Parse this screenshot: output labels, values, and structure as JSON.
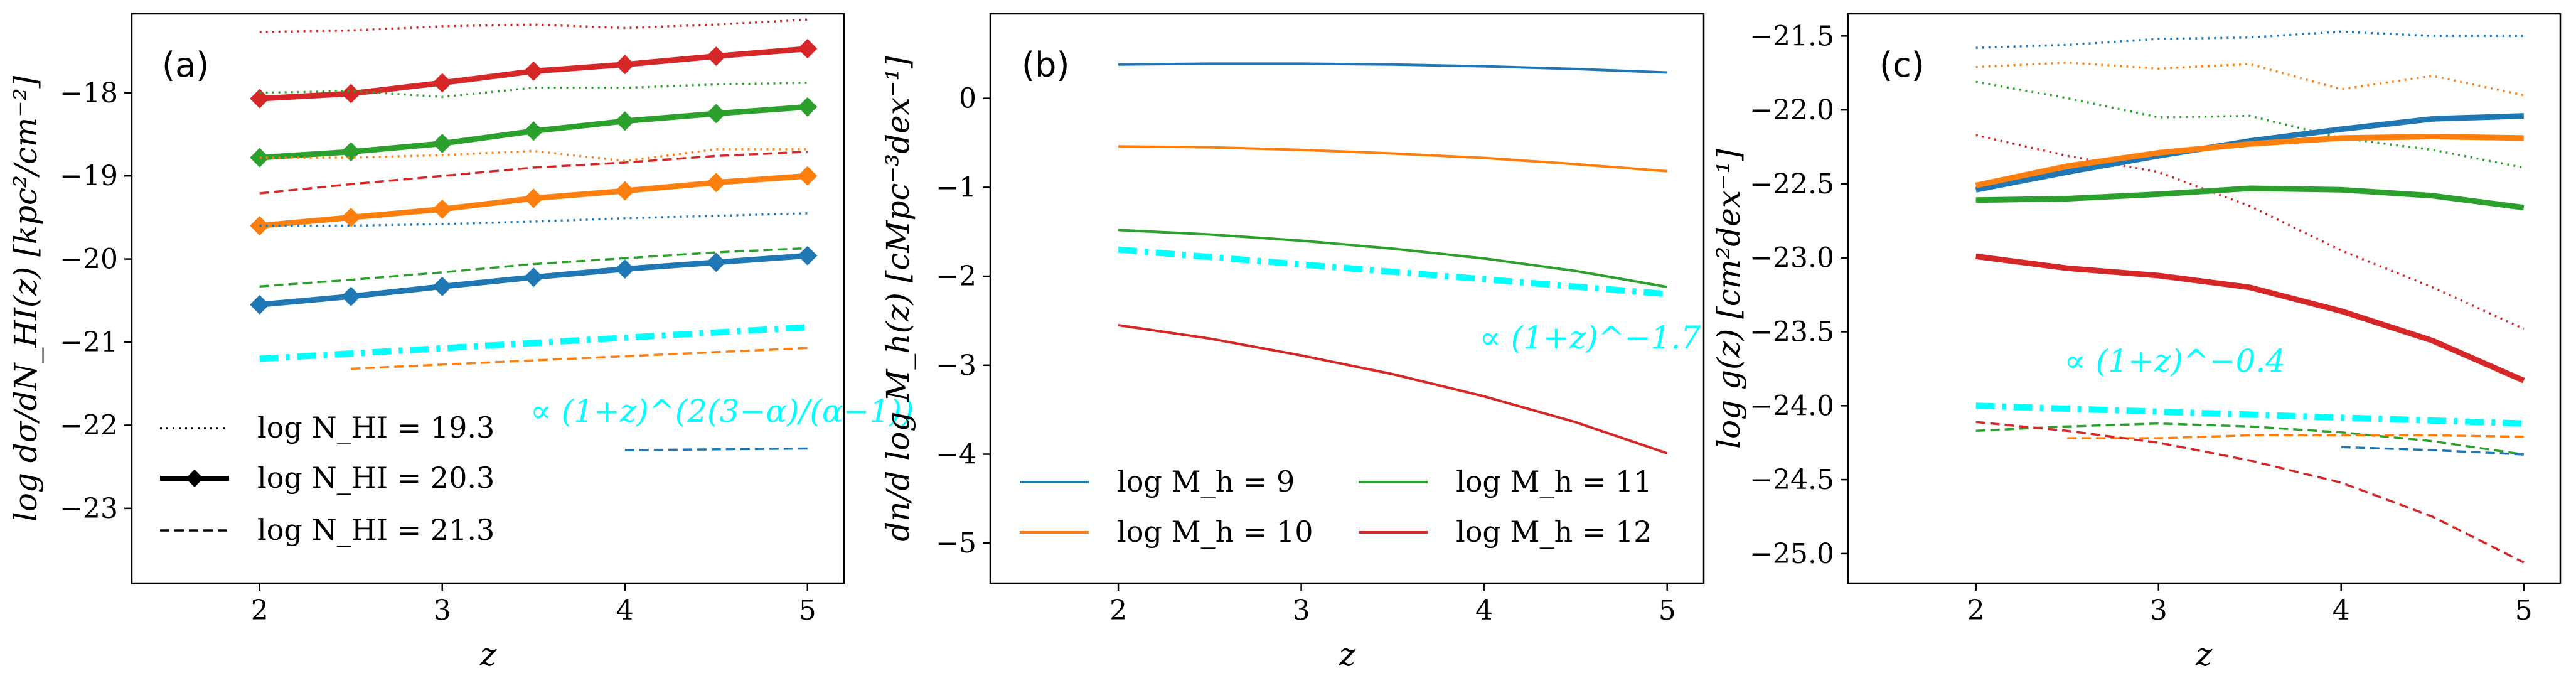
{
  "colors": {
    "blue": "#1f77b4",
    "orange": "#ff7f0e",
    "green": "#2ca02c",
    "red": "#d62728",
    "cyan": "#00ffff"
  },
  "chart_data": [
    {
      "type": "line",
      "panel_label": "(a)",
      "xlabel": "z",
      "ylabel": "log dσ/dN_HI(z) [kpc²/cm⁻²]",
      "xlim": [
        1.3,
        5.2
      ],
      "ylim": [
        -23.9,
        -17.05
      ],
      "xticks": [
        2,
        3,
        4,
        5
      ],
      "yticks": [
        -18,
        -19,
        -20,
        -21,
        -22,
        -23
      ],
      "legend": {
        "position": "lower-left",
        "entries": [
          {
            "label": "log N_HI = 19.3",
            "style": "dotted"
          },
          {
            "label": "log N_HI = 20.3",
            "style": "solid-diamond"
          },
          {
            "label": "log N_HI = 21.3",
            "style": "dashed"
          }
        ]
      },
      "annotation": "∝ (1+z)^(2(3−α)/(α−1))",
      "series": [
        {
          "name": "red log N_HI=19.3",
          "color": "red",
          "style": "dotted",
          "x": [
            2,
            2.5,
            3,
            3.5,
            4,
            4.5,
            5
          ],
          "y": [
            -17.27,
            -17.25,
            -17.2,
            -17.18,
            -17.22,
            -17.18,
            -17.12
          ]
        },
        {
          "name": "red log N_HI=20.3",
          "color": "red",
          "style": "solid",
          "marker": "D",
          "x": [
            2,
            2.5,
            3,
            3.5,
            4,
            4.5,
            5
          ],
          "y": [
            -18.07,
            -18.01,
            -17.88,
            -17.74,
            -17.66,
            -17.56,
            -17.47
          ]
        },
        {
          "name": "red log N_HI=21.3",
          "color": "red",
          "style": "dashed",
          "x": [
            2,
            2.5,
            3,
            3.5,
            4,
            4.5,
            5
          ],
          "y": [
            -19.21,
            -19.1,
            -19.0,
            -18.9,
            -18.84,
            -18.76,
            -18.71
          ]
        },
        {
          "name": "green log N_HI=19.3",
          "color": "green",
          "style": "dotted",
          "x": [
            2,
            2.5,
            3,
            3.5,
            4,
            4.5,
            5
          ],
          "y": [
            -18.0,
            -17.98,
            -18.05,
            -17.94,
            -17.94,
            -17.9,
            -17.88
          ]
        },
        {
          "name": "green log N_HI=20.3",
          "color": "green",
          "style": "solid",
          "marker": "D",
          "x": [
            2,
            2.5,
            3,
            3.5,
            4,
            4.5,
            5
          ],
          "y": [
            -18.78,
            -18.71,
            -18.61,
            -18.46,
            -18.34,
            -18.25,
            -18.17
          ]
        },
        {
          "name": "green log N_HI=21.3",
          "color": "green",
          "style": "dashed",
          "x": [
            2,
            2.5,
            3,
            3.5,
            4,
            4.5,
            5
          ],
          "y": [
            -20.33,
            -20.25,
            -20.16,
            -20.06,
            -19.99,
            -19.92,
            -19.87
          ]
        },
        {
          "name": "orange log N_HI=19.3",
          "color": "orange",
          "style": "dotted",
          "x": [
            2,
            2.5,
            3,
            3.5,
            4,
            4.5,
            5
          ],
          "y": [
            -18.78,
            -18.78,
            -18.75,
            -18.7,
            -18.82,
            -18.68,
            -18.68
          ]
        },
        {
          "name": "orange log N_HI=20.3",
          "color": "orange",
          "style": "solid",
          "marker": "D",
          "x": [
            2,
            2.5,
            3,
            3.5,
            4,
            4.5,
            5
          ],
          "y": [
            -19.6,
            -19.5,
            -19.4,
            -19.27,
            -19.18,
            -19.08,
            -19.0
          ]
        },
        {
          "name": "orange log N_HI=21.3",
          "color": "orange",
          "style": "dashed",
          "x": [
            2.5,
            3,
            3.5,
            4,
            4.5,
            5
          ],
          "y": [
            -21.32,
            -21.27,
            -21.22,
            -21.17,
            -21.12,
            -21.07
          ]
        },
        {
          "name": "blue log N_HI=19.3",
          "color": "blue",
          "style": "dotted",
          "x": [
            2,
            2.5,
            3,
            3.5,
            4,
            4.5,
            5
          ],
          "y": [
            -19.6,
            -19.6,
            -19.58,
            -19.55,
            -19.51,
            -19.48,
            -19.45
          ]
        },
        {
          "name": "blue log N_HI=20.3",
          "color": "blue",
          "style": "solid",
          "marker": "D",
          "x": [
            2,
            2.5,
            3,
            3.5,
            4,
            4.5,
            5
          ],
          "y": [
            -20.55,
            -20.45,
            -20.33,
            -20.22,
            -20.12,
            -20.04,
            -19.96
          ]
        },
        {
          "name": "blue log N_HI=21.3",
          "color": "blue",
          "style": "dashed",
          "x": [
            4,
            4.5,
            5
          ],
          "y": [
            -22.3,
            -22.29,
            -22.28
          ]
        },
        {
          "name": "power law",
          "color": "cyan",
          "style": "dashdot",
          "x": [
            2,
            5
          ],
          "y": [
            -21.2,
            -20.82
          ]
        }
      ]
    },
    {
      "type": "line",
      "panel_label": "(b)",
      "xlabel": "z",
      "ylabel": "dn/d log M_h(z) [cMpc⁻³dex⁻¹]",
      "xlim": [
        1.3,
        5.2
      ],
      "ylim": [
        -5.45,
        0.95
      ],
      "xticks": [
        2,
        3,
        4,
        5
      ],
      "yticks": [
        0,
        -1,
        -2,
        -3,
        -4,
        -5
      ],
      "legend": {
        "position": "lower-left",
        "entries": [
          {
            "label": "log M_h = 9",
            "color": "blue"
          },
          {
            "label": "log M_h = 10",
            "color": "orange"
          },
          {
            "label": "log M_h = 11",
            "color": "green"
          },
          {
            "label": "log M_h = 12",
            "color": "red"
          }
        ]
      },
      "annotation": "∝ (1+z)^−1.7",
      "series": [
        {
          "name": "log M_h = 9",
          "color": "blue",
          "style": "solid",
          "x": [
            2,
            2.5,
            3,
            3.5,
            4,
            4.5,
            5
          ],
          "y": [
            0.38,
            0.39,
            0.39,
            0.38,
            0.36,
            0.33,
            0.29
          ]
        },
        {
          "name": "log M_h = 10",
          "color": "orange",
          "style": "solid",
          "x": [
            2,
            2.5,
            3,
            3.5,
            4,
            4.5,
            5
          ],
          "y": [
            -0.54,
            -0.55,
            -0.58,
            -0.62,
            -0.67,
            -0.74,
            -0.82
          ]
        },
        {
          "name": "log M_h = 11",
          "color": "green",
          "style": "solid",
          "x": [
            2,
            2.5,
            3,
            3.5,
            4,
            4.5,
            5
          ],
          "y": [
            -1.48,
            -1.53,
            -1.6,
            -1.69,
            -1.8,
            -1.94,
            -2.12
          ]
        },
        {
          "name": "log M_h = 12",
          "color": "red",
          "style": "solid",
          "x": [
            2,
            2.5,
            3,
            3.5,
            4,
            4.5,
            5
          ],
          "y": [
            -2.55,
            -2.7,
            -2.89,
            -3.1,
            -3.35,
            -3.64,
            -3.99
          ]
        },
        {
          "name": "power law",
          "color": "cyan",
          "style": "dashdot",
          "x": [
            2,
            5
          ],
          "y": [
            -1.7,
            -2.2
          ]
        }
      ]
    },
    {
      "type": "line",
      "panel_label": "(c)",
      "xlabel": "z",
      "ylabel": "log g(z) [cm²dex⁻¹]",
      "xlim": [
        1.3,
        5.2
      ],
      "ylim": [
        -25.2,
        -21.35
      ],
      "xticks": [
        2,
        3,
        4,
        5
      ],
      "yticks": [
        -21.5,
        -22.0,
        -22.5,
        -23.0,
        -23.5,
        -24.0,
        -24.5,
        -25.0
      ],
      "ytick_labels": [
        "−21.5",
        "−22.0",
        "−22.5",
        "−23.0",
        "−23.5",
        "−24.0",
        "−24.5",
        "−25.0"
      ],
      "annotation": "∝ (1+z)^−0.4",
      "series": [
        {
          "name": "blue dotted",
          "color": "blue",
          "style": "dotted",
          "x": [
            2,
            2.5,
            3,
            3.5,
            4,
            4.5,
            5
          ],
          "y": [
            -21.58,
            -21.56,
            -21.52,
            -21.51,
            -21.47,
            -21.5,
            -21.5
          ]
        },
        {
          "name": "orange dotted",
          "color": "orange",
          "style": "dotted",
          "x": [
            2,
            2.5,
            3,
            3.5,
            4,
            4.5,
            5
          ],
          "y": [
            -21.71,
            -21.68,
            -21.72,
            -21.69,
            -21.86,
            -21.77,
            -21.9
          ]
        },
        {
          "name": "green dotted",
          "color": "green",
          "style": "dotted",
          "x": [
            2,
            2.5,
            3,
            3.5,
            4,
            4.5,
            5
          ],
          "y": [
            -21.81,
            -21.92,
            -22.05,
            -22.04,
            -22.19,
            -22.27,
            -22.39
          ]
        },
        {
          "name": "red dotted",
          "color": "red",
          "style": "dotted",
          "x": [
            2,
            2.5,
            3,
            3.5,
            4,
            4.5,
            5
          ],
          "y": [
            -22.17,
            -22.31,
            -22.42,
            -22.65,
            -22.95,
            -23.2,
            -23.48
          ]
        },
        {
          "name": "blue solid",
          "color": "blue",
          "style": "solid",
          "x": [
            2,
            2.5,
            3,
            3.5,
            4,
            4.5,
            5
          ],
          "y": [
            -22.54,
            -22.42,
            -22.31,
            -22.21,
            -22.13,
            -22.06,
            -22.04
          ]
        },
        {
          "name": "orange solid",
          "color": "orange",
          "style": "solid",
          "x": [
            2,
            2.5,
            3,
            3.5,
            4,
            4.5,
            5
          ],
          "y": [
            -22.51,
            -22.38,
            -22.29,
            -22.23,
            -22.19,
            -22.18,
            -22.19
          ]
        },
        {
          "name": "green solid",
          "color": "green",
          "style": "solid",
          "x": [
            2,
            2.5,
            3,
            3.5,
            4,
            4.5,
            5
          ],
          "y": [
            -22.61,
            -22.6,
            -22.57,
            -22.53,
            -22.54,
            -22.58,
            -22.66
          ]
        },
        {
          "name": "red solid",
          "color": "red",
          "style": "solid",
          "x": [
            2,
            2.5,
            3,
            3.5,
            4,
            4.5,
            5
          ],
          "y": [
            -22.99,
            -23.07,
            -23.12,
            -23.2,
            -23.36,
            -23.56,
            -23.83
          ]
        },
        {
          "name": "power law",
          "color": "cyan",
          "style": "dashdot",
          "x": [
            2,
            5
          ],
          "y": [
            -24.0,
            -24.12
          ]
        },
        {
          "name": "green dashed",
          "color": "green",
          "style": "dashed",
          "x": [
            2,
            2.5,
            3,
            3.5,
            4,
            4.5,
            5
          ],
          "y": [
            -24.17,
            -24.14,
            -24.12,
            -24.14,
            -24.18,
            -24.24,
            -24.33
          ]
        },
        {
          "name": "orange dashed",
          "color": "orange",
          "style": "dashed",
          "x": [
            2.5,
            3,
            3.5,
            4,
            4.5,
            5
          ],
          "y": [
            -24.22,
            -24.22,
            -24.2,
            -24.2,
            -24.2,
            -24.21
          ]
        },
        {
          "name": "red dashed",
          "color": "red",
          "style": "dashed",
          "x": [
            2,
            2.5,
            3,
            3.5,
            4,
            4.5,
            5
          ],
          "y": [
            -24.11,
            -24.17,
            -24.25,
            -24.37,
            -24.52,
            -24.75,
            -25.06
          ]
        },
        {
          "name": "blue dashed",
          "color": "blue",
          "style": "dashed",
          "x": [
            4,
            4.5,
            5
          ],
          "y": [
            -24.28,
            -24.3,
            -24.33
          ]
        }
      ]
    }
  ]
}
